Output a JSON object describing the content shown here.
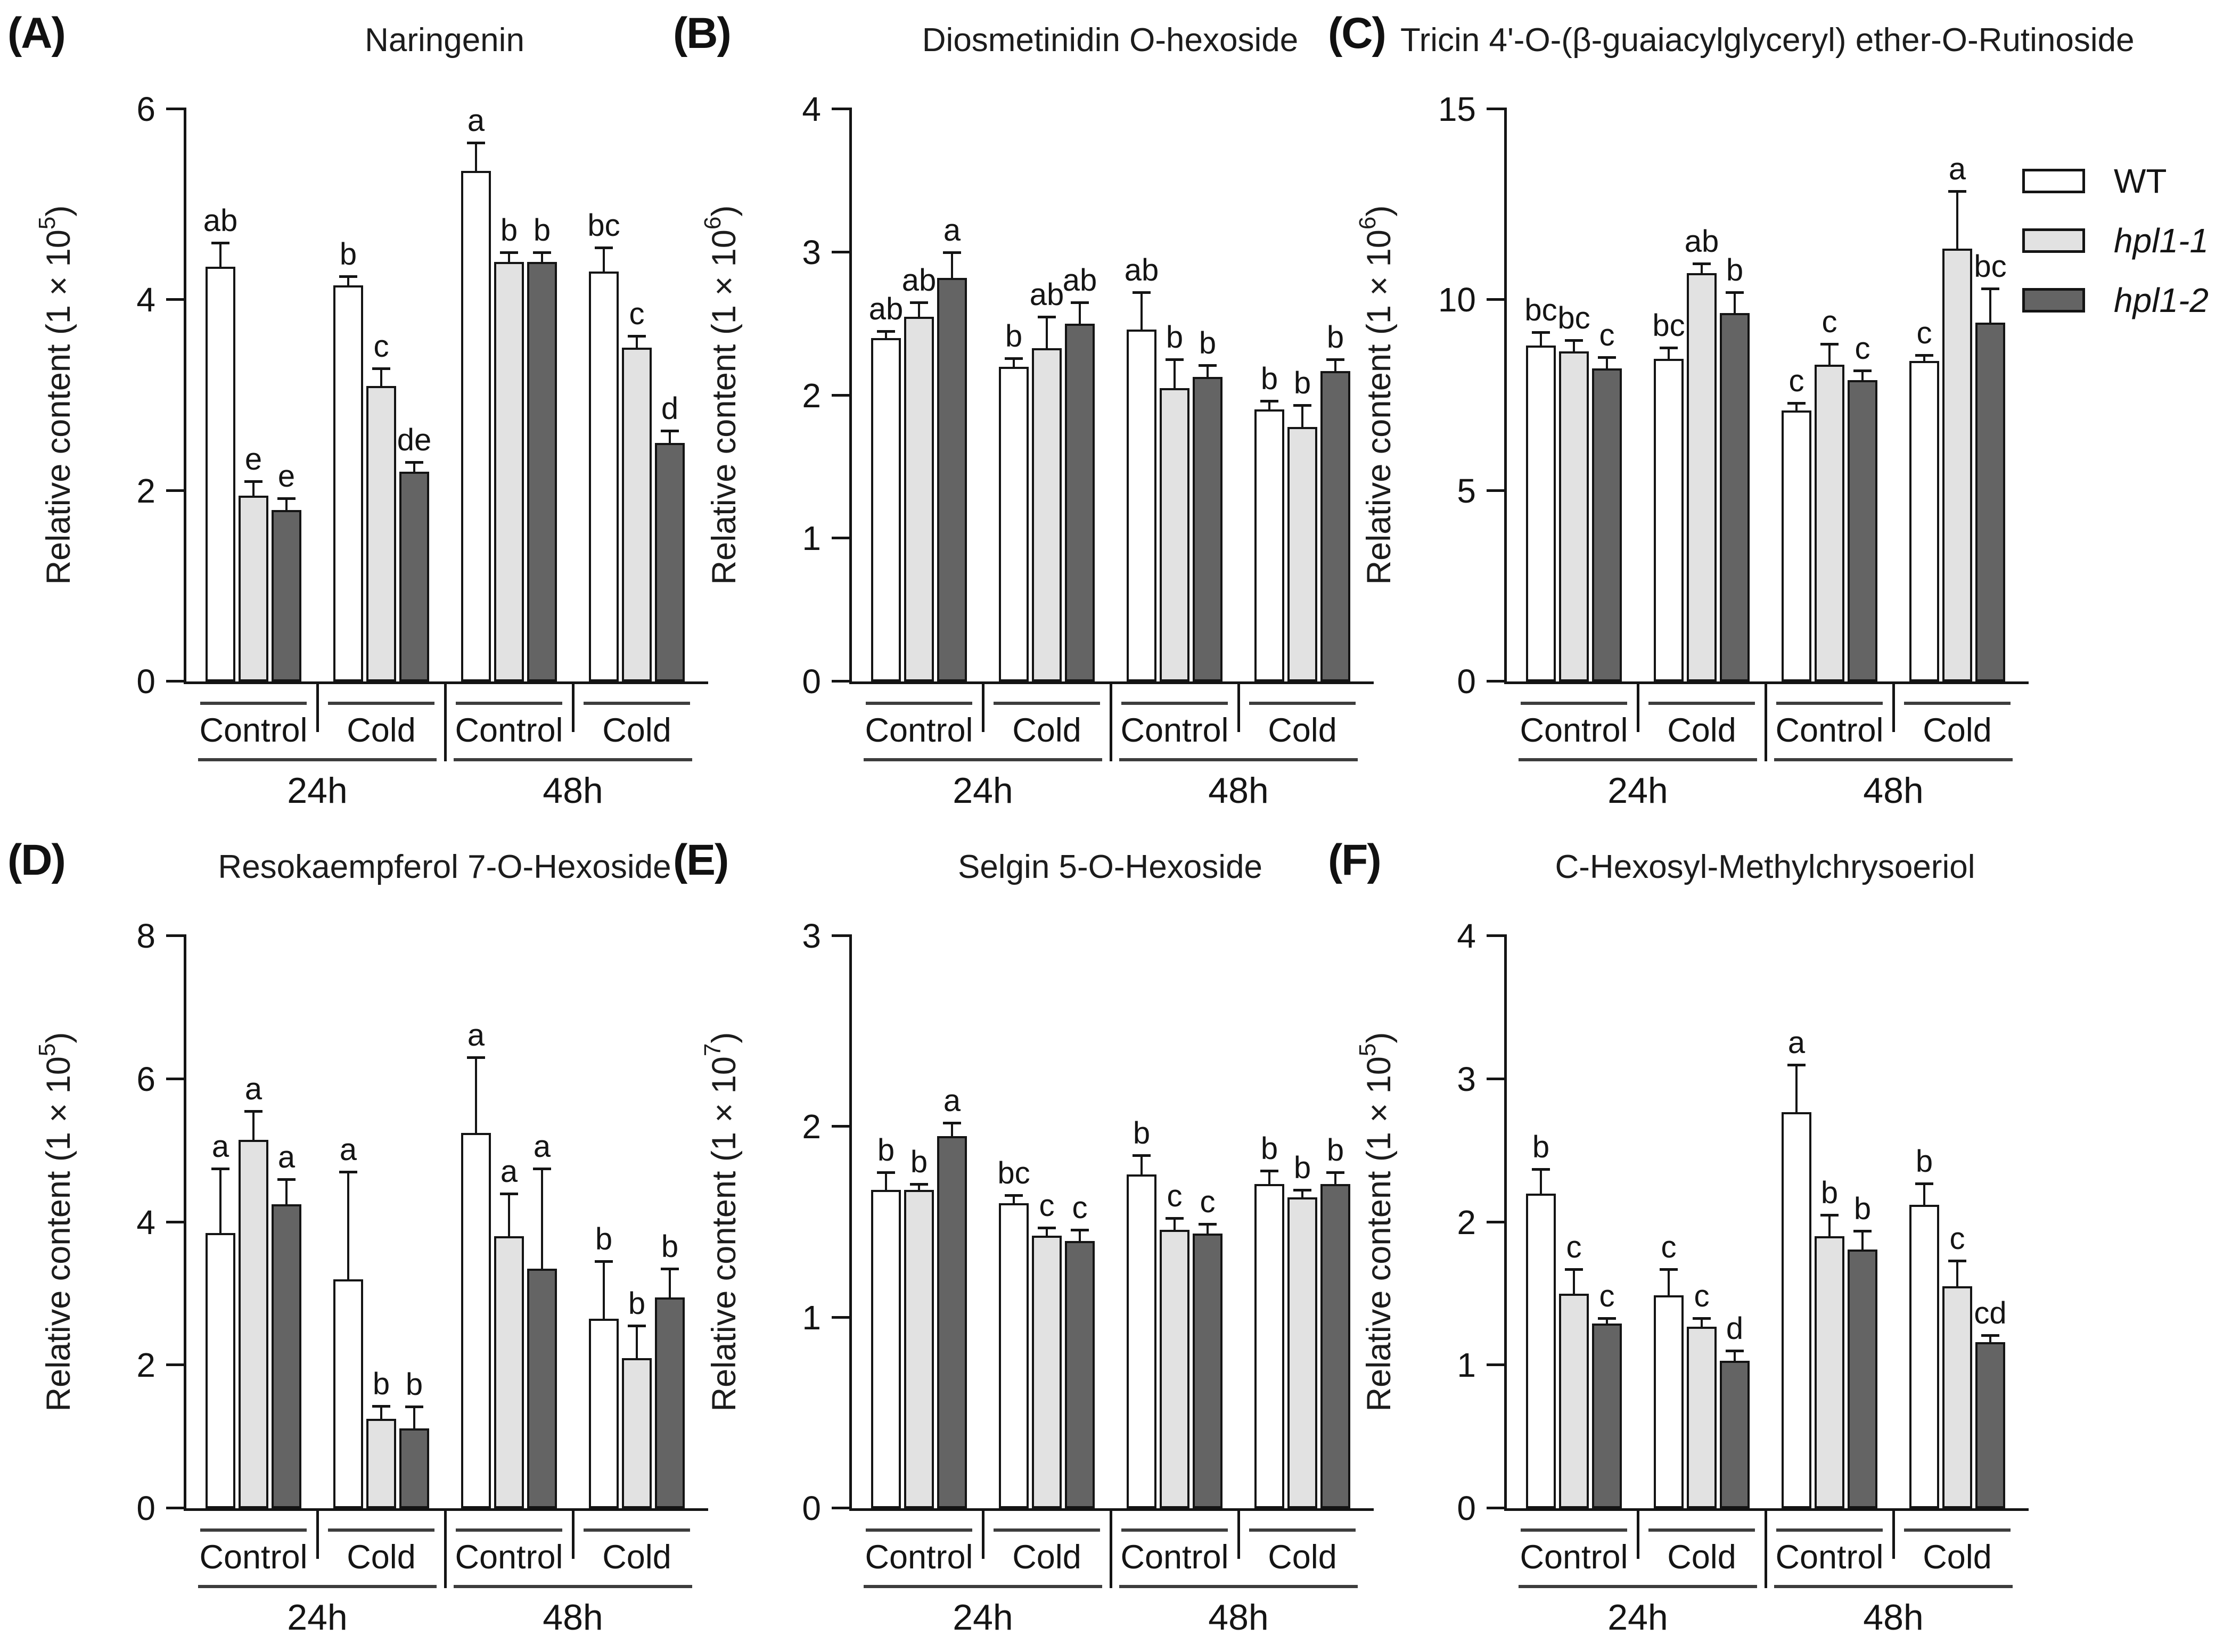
{
  "legend": {
    "items": [
      {
        "label": "WT",
        "color": "#ffffff",
        "italic": false
      },
      {
        "label": "hpl1-1",
        "color": "#e2e2e2",
        "italic": true
      },
      {
        "label": "hpl1-2",
        "color": "#646464",
        "italic": true
      }
    ]
  },
  "axis": {
    "group_labels": [
      "Control",
      "Cold",
      "Control",
      "Cold"
    ],
    "time_labels": [
      "24h",
      "48h"
    ]
  },
  "chart_data": [
    {
      "type": "bar",
      "panel_label": "(A)",
      "title": "Naringenin",
      "ylabel_prefix": "Relative content (1 × 10",
      "ylabel_exp": "5",
      "ylabel_suffix": ")",
      "ymax": 6,
      "yticks": [
        0,
        2,
        4,
        6
      ],
      "series_names": [
        "WT",
        "hpl1-1",
        "hpl1-2"
      ],
      "groups": [
        {
          "time": "24h",
          "condition": "Control",
          "values": [
            4.35,
            1.95,
            1.8
          ],
          "errors": [
            0.25,
            0.15,
            0.12
          ],
          "letters": [
            "ab",
            "e",
            "e"
          ]
        },
        {
          "time": "24h",
          "condition": "Cold",
          "values": [
            4.15,
            3.1,
            2.2
          ],
          "errors": [
            0.1,
            0.18,
            0.1
          ],
          "letters": [
            "b",
            "c",
            "de"
          ]
        },
        {
          "time": "48h",
          "condition": "Control",
          "values": [
            5.35,
            4.4,
            4.4
          ],
          "errors": [
            0.3,
            0.1,
            0.1
          ],
          "letters": [
            "a",
            "b",
            "b"
          ]
        },
        {
          "time": "48h",
          "condition": "Cold",
          "values": [
            4.3,
            3.5,
            2.5
          ],
          "errors": [
            0.25,
            0.12,
            0.13
          ],
          "letters": [
            "bc",
            "c",
            "d"
          ]
        }
      ]
    },
    {
      "type": "bar",
      "panel_label": "(B)",
      "title": "Diosmetinidin O-hexoside",
      "ylabel_prefix": "Relative content (1 × 10",
      "ylabel_exp": "6",
      "ylabel_suffix": ")",
      "ymax": 4,
      "yticks": [
        0,
        1,
        2,
        3,
        4
      ],
      "series_names": [
        "WT",
        "hpl1-1",
        "hpl1-2"
      ],
      "groups": [
        {
          "time": "24h",
          "condition": "Control",
          "values": [
            2.4,
            2.55,
            2.82
          ],
          "errors": [
            0.05,
            0.1,
            0.18
          ],
          "letters": [
            "ab",
            "ab",
            "a"
          ]
        },
        {
          "time": "24h",
          "condition": "Cold",
          "values": [
            2.2,
            2.33,
            2.5
          ],
          "errors": [
            0.06,
            0.22,
            0.15
          ],
          "letters": [
            "b",
            "ab",
            "ab"
          ]
        },
        {
          "time": "48h",
          "condition": "Control",
          "values": [
            2.46,
            2.05,
            2.13
          ],
          "errors": [
            0.26,
            0.2,
            0.08
          ],
          "letters": [
            "ab",
            "b",
            "b"
          ]
        },
        {
          "time": "48h",
          "condition": "Cold",
          "values": [
            1.9,
            1.78,
            2.17
          ],
          "errors": [
            0.06,
            0.15,
            0.08
          ],
          "letters": [
            "b",
            "b",
            "b"
          ]
        }
      ]
    },
    {
      "type": "bar",
      "panel_label": "(C)",
      "title": "Tricin 4'-O-(β-guaiacylglyceryl) ether-O-Rutinoside",
      "ylabel_prefix": "Relative content (1 × 10",
      "ylabel_exp": "6",
      "ylabel_suffix": ")",
      "ymax": 15,
      "yticks": [
        0,
        5,
        10,
        15
      ],
      "series_names": [
        "WT",
        "hpl1-1",
        "hpl1-2"
      ],
      "groups": [
        {
          "time": "24h",
          "condition": "Control",
          "values": [
            8.8,
            8.65,
            8.2
          ],
          "errors": [
            0.35,
            0.3,
            0.3
          ],
          "letters": [
            "bc",
            "bc",
            "c"
          ]
        },
        {
          "time": "24h",
          "condition": "Cold",
          "values": [
            8.45,
            10.7,
            9.65
          ],
          "errors": [
            0.3,
            0.25,
            0.55
          ],
          "letters": [
            "bc",
            "ab",
            "b"
          ]
        },
        {
          "time": "48h",
          "condition": "Control",
          "values": [
            7.1,
            8.3,
            7.9
          ],
          "errors": [
            0.2,
            0.55,
            0.25
          ],
          "letters": [
            "c",
            "c",
            "c"
          ]
        },
        {
          "time": "48h",
          "condition": "Cold",
          "values": [
            8.4,
            11.35,
            9.4
          ],
          "errors": [
            0.15,
            1.5,
            0.9
          ],
          "letters": [
            "c",
            "a",
            "bc"
          ]
        }
      ]
    },
    {
      "type": "bar",
      "panel_label": "(D)",
      "title": "Resokaempferol 7-O-Hexoside",
      "ylabel_prefix": "Relative content (1 × 10",
      "ylabel_exp": "5",
      "ylabel_suffix": ")",
      "ymax": 8,
      "yticks": [
        0,
        2,
        4,
        6,
        8
      ],
      "series_names": [
        "WT",
        "hpl1-1",
        "hpl1-2"
      ],
      "groups": [
        {
          "time": "24h",
          "condition": "Control",
          "values": [
            3.85,
            5.15,
            4.25
          ],
          "errors": [
            0.9,
            0.4,
            0.35
          ],
          "letters": [
            "a",
            "a",
            "a"
          ]
        },
        {
          "time": "24h",
          "condition": "Cold",
          "values": [
            3.2,
            1.25,
            1.12
          ],
          "errors": [
            1.5,
            0.18,
            0.3
          ],
          "letters": [
            "a",
            "b",
            "b"
          ]
        },
        {
          "time": "48h",
          "condition": "Control",
          "values": [
            5.25,
            3.8,
            3.35
          ],
          "errors": [
            1.05,
            0.6,
            1.4
          ],
          "letters": [
            "a",
            "a",
            "a"
          ]
        },
        {
          "time": "48h",
          "condition": "Cold",
          "values": [
            2.65,
            2.1,
            2.95
          ],
          "errors": [
            0.8,
            0.45,
            0.4
          ],
          "letters": [
            "b",
            "b",
            "b"
          ]
        }
      ]
    },
    {
      "type": "bar",
      "panel_label": "(E)",
      "title": "Selgin 5-O-Hexoside",
      "ylabel_prefix": "Relative content (1 × 10",
      "ylabel_exp": "7",
      "ylabel_suffix": ")",
      "ymax": 3,
      "yticks": [
        0,
        1,
        2,
        3
      ],
      "series_names": [
        "WT",
        "hpl1-1",
        "hpl1-2"
      ],
      "groups": [
        {
          "time": "24h",
          "condition": "Control",
          "values": [
            1.67,
            1.67,
            1.95
          ],
          "errors": [
            0.09,
            0.03,
            0.07
          ],
          "letters": [
            "b",
            "b",
            "a"
          ]
        },
        {
          "time": "24h",
          "condition": "Cold",
          "values": [
            1.6,
            1.43,
            1.4
          ],
          "errors": [
            0.04,
            0.04,
            0.06
          ],
          "letters": [
            "bc",
            "c",
            "c"
          ]
        },
        {
          "time": "48h",
          "condition": "Control",
          "values": [
            1.75,
            1.46,
            1.44
          ],
          "errors": [
            0.1,
            0.06,
            0.05
          ],
          "letters": [
            "b",
            "c",
            "c"
          ]
        },
        {
          "time": "48h",
          "condition": "Cold",
          "values": [
            1.7,
            1.63,
            1.7
          ],
          "errors": [
            0.07,
            0.04,
            0.06
          ],
          "letters": [
            "b",
            "b",
            "b"
          ]
        }
      ]
    },
    {
      "type": "bar",
      "panel_label": "(F)",
      "title": "C-Hexosyl-Methylchrysoeriol",
      "ylabel_prefix": "Relative content (1 × 10",
      "ylabel_exp": "5",
      "ylabel_suffix": ")",
      "ymax": 4,
      "yticks": [
        0,
        1,
        2,
        3,
        4
      ],
      "series_names": [
        "WT",
        "hpl1-1",
        "hpl1-2"
      ],
      "groups": [
        {
          "time": "24h",
          "condition": "Control",
          "values": [
            2.2,
            1.5,
            1.29
          ],
          "errors": [
            0.17,
            0.17,
            0.04
          ],
          "letters": [
            "b",
            "c",
            "c"
          ]
        },
        {
          "time": "24h",
          "condition": "Cold",
          "values": [
            1.49,
            1.27,
            1.03
          ],
          "errors": [
            0.18,
            0.06,
            0.07
          ],
          "letters": [
            "c",
            "c",
            "d"
          ]
        },
        {
          "time": "48h",
          "condition": "Control",
          "values": [
            2.77,
            1.9,
            1.81
          ],
          "errors": [
            0.33,
            0.15,
            0.13
          ],
          "letters": [
            "a",
            "b",
            "b"
          ]
        },
        {
          "time": "48h",
          "condition": "Cold",
          "values": [
            2.12,
            1.55,
            1.16
          ],
          "errors": [
            0.15,
            0.18,
            0.05
          ],
          "letters": [
            "b",
            "c",
            "cd"
          ]
        }
      ]
    }
  ]
}
